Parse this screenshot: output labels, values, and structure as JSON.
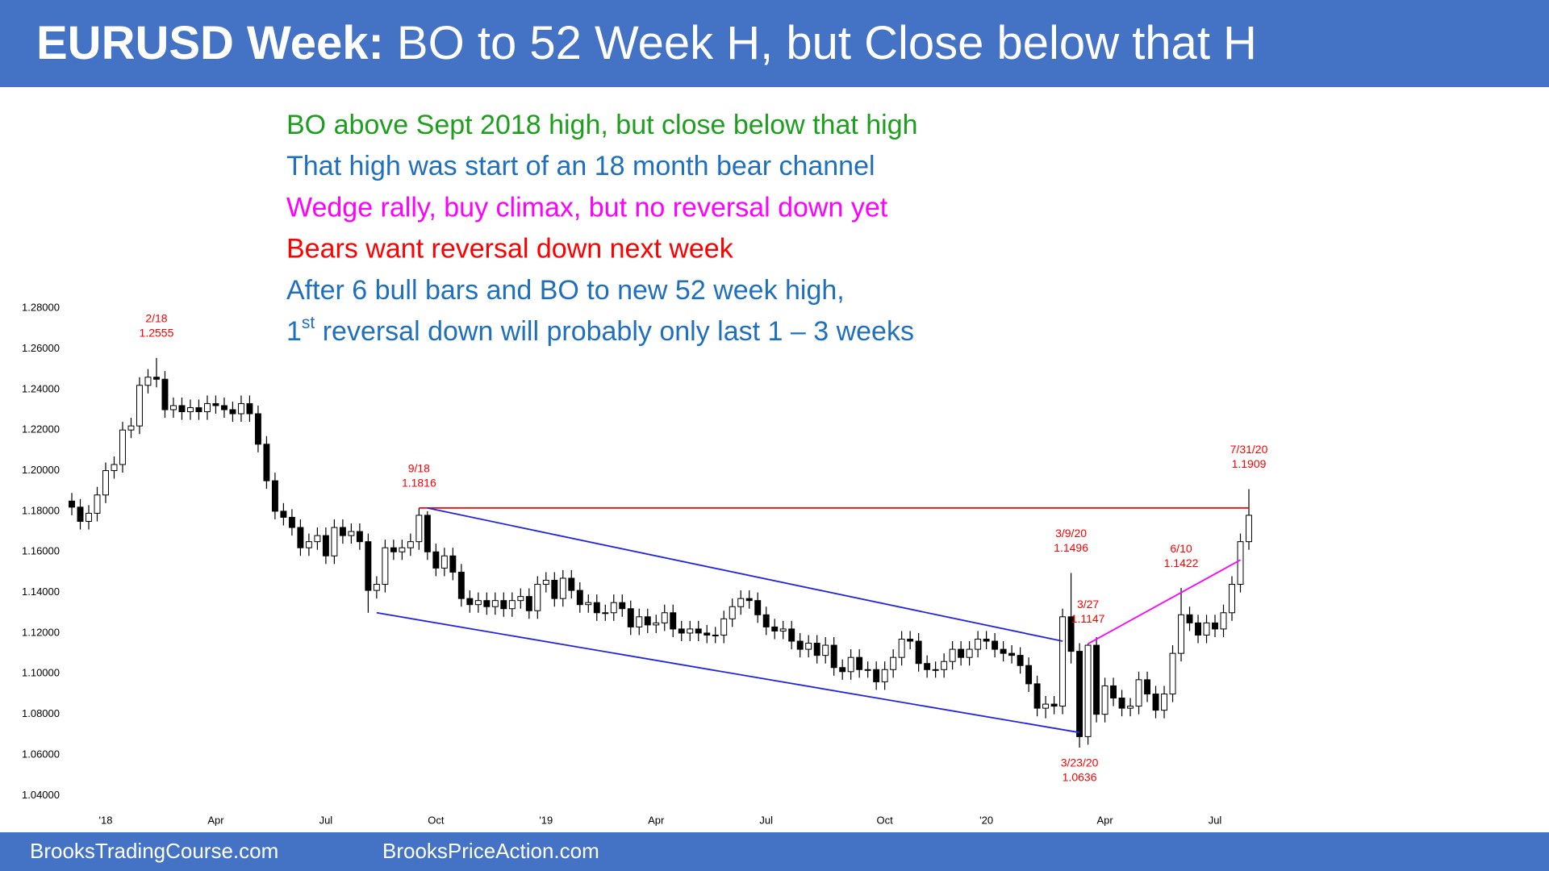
{
  "header": {
    "title_bold": "EURUSD Week:",
    "title_rest": " BO to 52 Week H, but Close below that H"
  },
  "notes": [
    {
      "text": "BO above Sept 2018 high, but close below that high",
      "color": "#1e9e1e"
    },
    {
      "text": "That high was start of an 18 month bear channel",
      "color": "#1f6fbf"
    },
    {
      "text": "Wedge rally, buy climax, but no reversal down yet",
      "color": "#ff00ff"
    },
    {
      "text": "Bears want reversal down next week",
      "color": "#ff0000"
    },
    {
      "text": "After 6 bull bars and BO to new 52 week high,",
      "color": "#1f6fbf"
    },
    {
      "text": "1",
      "sup": "st",
      "rest": " reversal down will probably only last 1 – 3 weeks",
      "color": "#1f6fbf"
    }
  ],
  "footer": {
    "left": "BrooksTradingCourse.com",
    "right": "BrooksPriceAction.com"
  },
  "chart_data": {
    "type": "candlestick",
    "up_color": "#ffffff",
    "down_color": "#000000",
    "wick_color": "#000000",
    "ylim": [
      1.033,
      1.286
    ],
    "yticks": [
      {
        "value": 1.04,
        "label": "1.04000"
      },
      {
        "value": 1.06,
        "label": "1.06000"
      },
      {
        "value": 1.08,
        "label": "1.08000"
      },
      {
        "value": 1.1,
        "label": "1.10000"
      },
      {
        "value": 1.12,
        "label": "1.12000"
      },
      {
        "value": 1.14,
        "label": "1.14000"
      },
      {
        "value": 1.16,
        "label": "1.16000"
      },
      {
        "value": 1.18,
        "label": "1.18000"
      },
      {
        "value": 1.2,
        "label": "1.20000"
      },
      {
        "value": 1.22,
        "label": "1.22000"
      },
      {
        "value": 1.24,
        "label": "1.24000"
      },
      {
        "value": 1.26,
        "label": "1.26000"
      },
      {
        "value": 1.28,
        "label": "1.28000"
      }
    ],
    "xticks": [
      {
        "value": 4,
        "label": "'18"
      },
      {
        "value": 17,
        "label": "Apr"
      },
      {
        "value": 30,
        "label": "Jul"
      },
      {
        "value": 43,
        "label": "Oct"
      },
      {
        "value": 56,
        "label": "'19"
      },
      {
        "value": 69,
        "label": "Apr"
      },
      {
        "value": 82,
        "label": "Jul"
      },
      {
        "value": 96,
        "label": "Oct"
      },
      {
        "value": 108,
        "label": "'20"
      },
      {
        "value": 122,
        "label": "Apr"
      },
      {
        "value": 135,
        "label": "Jul"
      }
    ],
    "open": [
      1.185,
      1.182,
      1.175,
      1.179,
      1.188,
      1.2,
      1.203,
      1.22,
      1.222,
      1.242,
      1.246,
      1.245,
      1.23,
      1.232,
      1.229,
      1.231,
      1.229,
      1.233,
      1.232,
      1.23,
      1.228,
      1.233,
      1.228,
      1.213,
      1.195,
      1.18,
      1.177,
      1.172,
      1.162,
      1.165,
      1.168,
      1.158,
      1.172,
      1.168,
      1.17,
      1.165,
      1.141,
      1.144,
      1.162,
      1.16,
      1.162,
      1.165,
      1.178,
      1.16,
      1.152,
      1.158,
      1.15,
      1.137,
      1.134,
      1.136,
      1.133,
      1.136,
      1.132,
      1.136,
      1.138,
      1.131,
      1.144,
      1.146,
      1.137,
      1.147,
      1.141,
      1.134,
      1.135,
      1.13,
      1.13,
      1.135,
      1.132,
      1.123,
      1.128,
      1.124,
      1.125,
      1.13,
      1.122,
      1.12,
      1.122,
      1.12,
      1.119,
      1.119,
      1.127,
      1.133,
      1.137,
      1.136,
      1.129,
      1.123,
      1.121,
      1.122,
      1.116,
      1.112,
      1.115,
      1.109,
      1.114,
      1.103,
      1.101,
      1.108,
      1.102,
      1.102,
      1.096,
      1.102,
      1.108,
      1.117,
      1.116,
      1.105,
      1.102,
      1.102,
      1.106,
      1.112,
      1.108,
      1.112,
      1.117,
      1.116,
      1.112,
      1.11,
      1.109,
      1.104,
      1.095,
      1.083,
      1.085,
      1.084,
      1.128,
      1.111,
      1.069,
      1.114,
      1.08,
      1.094,
      1.088,
      1.083,
      1.084,
      1.097,
      1.09,
      1.082,
      1.09,
      1.11,
      1.129,
      1.125,
      1.119,
      1.125,
      1.122,
      1.13,
      1.144,
      1.165
    ],
    "high": [
      1.189,
      1.186,
      1.183,
      1.192,
      1.204,
      1.207,
      1.224,
      1.226,
      1.246,
      1.25,
      1.2555,
      1.249,
      1.236,
      1.236,
      1.235,
      1.235,
      1.237,
      1.237,
      1.236,
      1.234,
      1.237,
      1.237,
      1.232,
      1.217,
      1.199,
      1.184,
      1.181,
      1.176,
      1.169,
      1.172,
      1.172,
      1.176,
      1.176,
      1.174,
      1.174,
      1.169,
      1.148,
      1.166,
      1.166,
      1.166,
      1.169,
      1.1816,
      1.18,
      1.164,
      1.162,
      1.162,
      1.154,
      1.141,
      1.14,
      1.14,
      1.14,
      1.14,
      1.14,
      1.142,
      1.142,
      1.148,
      1.15,
      1.15,
      1.151,
      1.151,
      1.145,
      1.139,
      1.139,
      1.134,
      1.139,
      1.139,
      1.136,
      1.132,
      1.132,
      1.129,
      1.134,
      1.134,
      1.126,
      1.126,
      1.126,
      1.124,
      1.123,
      1.131,
      1.137,
      1.141,
      1.141,
      1.14,
      1.133,
      1.127,
      1.126,
      1.126,
      1.12,
      1.119,
      1.119,
      1.118,
      1.118,
      1.107,
      1.112,
      1.112,
      1.106,
      1.106,
      1.106,
      1.112,
      1.121,
      1.121,
      1.12,
      1.109,
      1.106,
      1.11,
      1.116,
      1.116,
      1.116,
      1.121,
      1.121,
      1.12,
      1.116,
      1.114,
      1.113,
      1.108,
      1.099,
      1.089,
      1.089,
      1.132,
      1.1496,
      1.115,
      1.1147,
      1.118,
      1.098,
      1.098,
      1.092,
      1.088,
      1.101,
      1.101,
      1.094,
      1.094,
      1.114,
      1.1422,
      1.133,
      1.129,
      1.129,
      1.129,
      1.134,
      1.148,
      1.169,
      1.1909
    ],
    "low": [
      1.178,
      1.171,
      1.171,
      1.175,
      1.184,
      1.196,
      1.199,
      1.216,
      1.218,
      1.238,
      1.241,
      1.226,
      1.226,
      1.225,
      1.225,
      1.225,
      1.225,
      1.228,
      1.226,
      1.224,
      1.224,
      1.224,
      1.209,
      1.191,
      1.176,
      1.173,
      1.168,
      1.158,
      1.158,
      1.161,
      1.154,
      1.154,
      1.164,
      1.164,
      1.161,
      1.13,
      1.137,
      1.14,
      1.156,
      1.156,
      1.158,
      1.161,
      1.156,
      1.148,
      1.148,
      1.146,
      1.133,
      1.13,
      1.13,
      1.129,
      1.129,
      1.128,
      1.128,
      1.132,
      1.127,
      1.127,
      1.14,
      1.133,
      1.133,
      1.137,
      1.13,
      1.13,
      1.126,
      1.126,
      1.126,
      1.128,
      1.119,
      1.119,
      1.12,
      1.12,
      1.121,
      1.118,
      1.116,
      1.116,
      1.116,
      1.115,
      1.115,
      1.115,
      1.123,
      1.129,
      1.132,
      1.125,
      1.119,
      1.117,
      1.117,
      1.112,
      1.108,
      1.108,
      1.105,
      1.105,
      1.099,
      1.097,
      1.097,
      1.098,
      1.098,
      1.092,
      1.092,
      1.098,
      1.104,
      1.112,
      1.101,
      1.098,
      1.098,
      1.098,
      1.102,
      1.104,
      1.104,
      1.108,
      1.112,
      1.108,
      1.106,
      1.105,
      1.1,
      1.091,
      1.079,
      1.078,
      1.08,
      1.08,
      1.105,
      1.0636,
      1.065,
      1.076,
      1.076,
      1.084,
      1.079,
      1.079,
      1.08,
      1.086,
      1.078,
      1.078,
      1.086,
      1.106,
      1.121,
      1.115,
      1.115,
      1.118,
      1.118,
      1.126,
      1.14,
      1.161
    ],
    "close": [
      1.182,
      1.175,
      1.179,
      1.188,
      1.2,
      1.203,
      1.22,
      1.222,
      1.242,
      1.246,
      1.245,
      1.23,
      1.232,
      1.229,
      1.231,
      1.229,
      1.233,
      1.232,
      1.23,
      1.228,
      1.233,
      1.228,
      1.213,
      1.195,
      1.18,
      1.177,
      1.172,
      1.162,
      1.165,
      1.168,
      1.158,
      1.172,
      1.168,
      1.17,
      1.165,
      1.141,
      1.144,
      1.162,
      1.16,
      1.162,
      1.165,
      1.178,
      1.16,
      1.152,
      1.158,
      1.15,
      1.137,
      1.134,
      1.136,
      1.133,
      1.136,
      1.132,
      1.136,
      1.138,
      1.131,
      1.144,
      1.146,
      1.137,
      1.147,
      1.141,
      1.134,
      1.135,
      1.13,
      1.13,
      1.135,
      1.132,
      1.123,
      1.128,
      1.124,
      1.125,
      1.13,
      1.122,
      1.12,
      1.122,
      1.12,
      1.119,
      1.119,
      1.127,
      1.133,
      1.137,
      1.136,
      1.129,
      1.123,
      1.121,
      1.122,
      1.116,
      1.112,
      1.115,
      1.109,
      1.114,
      1.103,
      1.101,
      1.108,
      1.102,
      1.102,
      1.096,
      1.102,
      1.108,
      1.117,
      1.116,
      1.105,
      1.102,
      1.102,
      1.106,
      1.112,
      1.108,
      1.112,
      1.117,
      1.116,
      1.112,
      1.11,
      1.109,
      1.104,
      1.095,
      1.083,
      1.085,
      1.084,
      1.128,
      1.111,
      1.069,
      1.114,
      1.08,
      1.094,
      1.088,
      1.083,
      1.084,
      1.097,
      1.09,
      1.082,
      1.09,
      1.11,
      1.129,
      1.125,
      1.119,
      1.125,
      1.122,
      1.13,
      1.144,
      1.165,
      1.178
    ],
    "annotation_color": "#ff0000",
    "annotations": [
      {
        "date": "2/18",
        "value": 1.2555
      },
      {
        "date": "9/18",
        "value": 1.1816
      },
      {
        "date": "3/9/20",
        "value": 1.1496
      },
      {
        "date": "3/27",
        "value": 1.1147
      },
      {
        "date": "3/23/20",
        "value": 1.0636
      },
      {
        "date": "6/10",
        "value": 1.1422
      },
      {
        "date": "7/31/20",
        "value": 1.1909
      }
    ],
    "trendlines": [
      {
        "color": "#ff0000",
        "points": [
          [
            41,
            1.1816
          ],
          [
            139,
            1.1816
          ]
        ]
      },
      {
        "color": "#2323e6",
        "points": [
          [
            42,
            1.1816
          ],
          [
            117,
            1.116
          ]
        ]
      },
      {
        "color": "#2323e6",
        "points": [
          [
            36,
            1.13
          ],
          [
            119,
            1.071
          ]
        ]
      },
      {
        "color": "#ff00ff",
        "points": [
          [
            120,
            1.1147
          ],
          [
            138,
            1.156
          ]
        ]
      }
    ]
  }
}
